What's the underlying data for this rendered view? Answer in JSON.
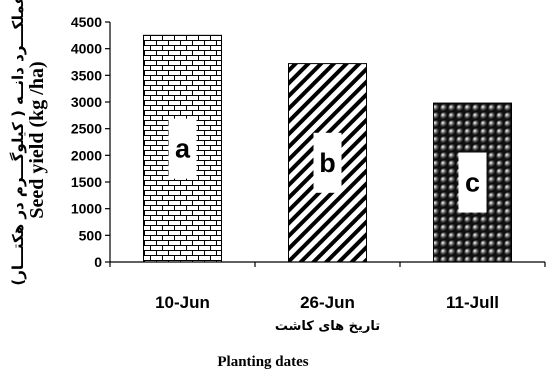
{
  "chart_data": {
    "type": "bar",
    "categories": [
      "10-Jun",
      "26-Jun",
      "11-Jull"
    ],
    "categories_fa": [
      "",
      "تاريخ های کاشت",
      ""
    ],
    "values": [
      4250,
      3720,
      2980
    ],
    "group_letters": [
      "a",
      "b",
      "c"
    ],
    "patterns": [
      "brick",
      "diagonal",
      "dots"
    ],
    "xlabel": "Planting dates",
    "ylabel": "Seed yield (kg /ha)",
    "ylabel_fa": "عملکـــرد دانــه ( کیلوگـــرم در هکتـــار)",
    "ylim": [
      0,
      4500
    ],
    "yticks": [
      0,
      500,
      1000,
      1500,
      2000,
      2500,
      3000,
      3500,
      4000,
      4500
    ],
    "grid": false,
    "legend": "none"
  }
}
